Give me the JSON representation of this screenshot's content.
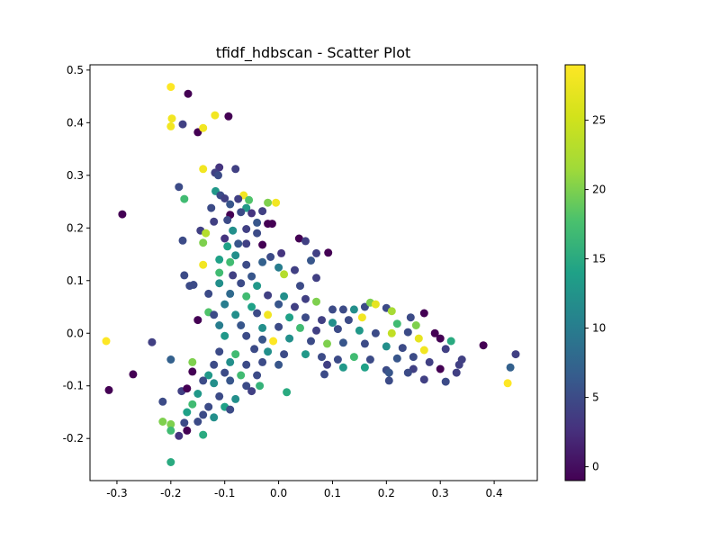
{
  "chart_data": {
    "type": "scatter",
    "title": "tfidf_hdbscan - Scatter Plot",
    "xlabel": "",
    "ylabel": "",
    "xlim": [
      -0.35,
      0.48
    ],
    "ylim": [
      -0.28,
      0.51
    ],
    "x_ticks": [
      "-0.3",
      "-0.2",
      "-0.1",
      "0.0",
      "0.1",
      "0.2",
      "0.3",
      "0.4"
    ],
    "x_tick_values": [
      -0.3,
      -0.2,
      -0.1,
      0.0,
      0.1,
      0.2,
      0.3,
      0.4
    ],
    "y_ticks": [
      "-0.2",
      "-0.1",
      "0.0",
      "0.1",
      "0.2",
      "0.3",
      "0.4",
      "0.5"
    ],
    "y_tick_values": [
      -0.2,
      -0.1,
      0.0,
      0.1,
      0.2,
      0.3,
      0.4,
      0.5
    ],
    "grid": false,
    "colormap": "viridis",
    "colorbar": {
      "range": [
        -1,
        29
      ],
      "ticks": [
        "0",
        "5",
        "10",
        "15",
        "20",
        "25"
      ],
      "tick_values": [
        0,
        5,
        10,
        15,
        20,
        25
      ]
    },
    "points": [
      {
        "x": -0.2,
        "y": 0.468,
        "c": 29
      },
      {
        "x": -0.168,
        "y": 0.455,
        "c": -1
      },
      {
        "x": -0.198,
        "y": 0.408,
        "c": 28
      },
      {
        "x": -0.2,
        "y": 0.393,
        "c": 28
      },
      {
        "x": -0.178,
        "y": 0.397,
        "c": 4
      },
      {
        "x": -0.15,
        "y": 0.382,
        "c": -1
      },
      {
        "x": -0.14,
        "y": 0.39,
        "c": 28
      },
      {
        "x": -0.118,
        "y": 0.414,
        "c": 28
      },
      {
        "x": -0.093,
        "y": 0.412,
        "c": -1
      },
      {
        "x": -0.14,
        "y": 0.312,
        "c": 28
      },
      {
        "x": -0.11,
        "y": 0.315,
        "c": 3
      },
      {
        "x": -0.08,
        "y": 0.312,
        "c": 4
      },
      {
        "x": -0.118,
        "y": 0.305,
        "c": 4
      },
      {
        "x": -0.112,
        "y": 0.3,
        "c": 5
      },
      {
        "x": -0.185,
        "y": 0.278,
        "c": 5
      },
      {
        "x": -0.175,
        "y": 0.255,
        "c": 17
      },
      {
        "x": -0.117,
        "y": 0.27,
        "c": 13
      },
      {
        "x": -0.108,
        "y": 0.262,
        "c": 5
      },
      {
        "x": -0.1,
        "y": 0.256,
        "c": 4
      },
      {
        "x": -0.065,
        "y": 0.262,
        "c": 28
      },
      {
        "x": -0.075,
        "y": 0.255,
        "c": 4
      },
      {
        "x": -0.09,
        "y": 0.245,
        "c": 6
      },
      {
        "x": -0.055,
        "y": 0.253,
        "c": 18
      },
      {
        "x": -0.02,
        "y": 0.248,
        "c": 20
      },
      {
        "x": -0.005,
        "y": 0.248,
        "c": 28
      },
      {
        "x": -0.125,
        "y": 0.238,
        "c": 5
      },
      {
        "x": -0.06,
        "y": 0.238,
        "c": 13
      },
      {
        "x": -0.09,
        "y": 0.225,
        "c": -1
      },
      {
        "x": -0.07,
        "y": 0.23,
        "c": 5
      },
      {
        "x": -0.05,
        "y": 0.228,
        "c": 3
      },
      {
        "x": -0.03,
        "y": 0.232,
        "c": 4
      },
      {
        "x": -0.12,
        "y": 0.212,
        "c": 4
      },
      {
        "x": -0.095,
        "y": 0.215,
        "c": 5
      },
      {
        "x": -0.04,
        "y": 0.21,
        "c": 6
      },
      {
        "x": -0.02,
        "y": 0.208,
        "c": -1
      },
      {
        "x": -0.012,
        "y": 0.208,
        "c": -1
      },
      {
        "x": -0.29,
        "y": 0.226,
        "c": -1
      },
      {
        "x": -0.145,
        "y": 0.195,
        "c": 4
      },
      {
        "x": -0.135,
        "y": 0.19,
        "c": 23
      },
      {
        "x": -0.085,
        "y": 0.195,
        "c": 12
      },
      {
        "x": -0.06,
        "y": 0.198,
        "c": 4
      },
      {
        "x": -0.04,
        "y": 0.19,
        "c": 5
      },
      {
        "x": -0.178,
        "y": 0.176,
        "c": 5
      },
      {
        "x": -0.14,
        "y": 0.172,
        "c": 20
      },
      {
        "x": -0.1,
        "y": 0.18,
        "c": 3
      },
      {
        "x": -0.095,
        "y": 0.165,
        "c": 14
      },
      {
        "x": -0.075,
        "y": 0.17,
        "c": 6
      },
      {
        "x": -0.06,
        "y": 0.17,
        "c": 4
      },
      {
        "x": -0.03,
        "y": 0.168,
        "c": -1
      },
      {
        "x": 0.038,
        "y": 0.18,
        "c": -1
      },
      {
        "x": 0.05,
        "y": 0.175,
        "c": 4
      },
      {
        "x": 0.07,
        "y": 0.152,
        "c": 4
      },
      {
        "x": 0.092,
        "y": 0.153,
        "c": -1
      },
      {
        "x": 0.005,
        "y": 0.152,
        "c": 3
      },
      {
        "x": -0.015,
        "y": 0.145,
        "c": 5
      },
      {
        "x": -0.08,
        "y": 0.148,
        "c": 12
      },
      {
        "x": -0.11,
        "y": 0.14,
        "c": 14
      },
      {
        "x": -0.14,
        "y": 0.13,
        "c": 28
      },
      {
        "x": -0.09,
        "y": 0.135,
        "c": 17
      },
      {
        "x": -0.06,
        "y": 0.13,
        "c": 5
      },
      {
        "x": -0.03,
        "y": 0.135,
        "c": 7
      },
      {
        "x": 0.06,
        "y": 0.138,
        "c": 6
      },
      {
        "x": 0.0,
        "y": 0.125,
        "c": 10
      },
      {
        "x": 0.03,
        "y": 0.12,
        "c": 4
      },
      {
        "x": 0.01,
        "y": 0.112,
        "c": 23
      },
      {
        "x": -0.175,
        "y": 0.11,
        "c": 5
      },
      {
        "x": -0.11,
        "y": 0.115,
        "c": 17
      },
      {
        "x": -0.085,
        "y": 0.11,
        "c": 4
      },
      {
        "x": -0.05,
        "y": 0.108,
        "c": 6
      },
      {
        "x": 0.07,
        "y": 0.105,
        "c": 4
      },
      {
        "x": -0.165,
        "y": 0.09,
        "c": 5
      },
      {
        "x": -0.158,
        "y": 0.092,
        "c": 5
      },
      {
        "x": -0.11,
        "y": 0.095,
        "c": 12
      },
      {
        "x": -0.07,
        "y": 0.095,
        "c": 5
      },
      {
        "x": -0.04,
        "y": 0.09,
        "c": 13
      },
      {
        "x": 0.04,
        "y": 0.09,
        "c": 5
      },
      {
        "x": -0.13,
        "y": 0.075,
        "c": 5
      },
      {
        "x": -0.09,
        "y": 0.075,
        "c": 8
      },
      {
        "x": -0.06,
        "y": 0.07,
        "c": 17
      },
      {
        "x": -0.02,
        "y": 0.072,
        "c": 4
      },
      {
        "x": 0.01,
        "y": 0.07,
        "c": 12
      },
      {
        "x": 0.05,
        "y": 0.065,
        "c": 4
      },
      {
        "x": -0.1,
        "y": 0.055,
        "c": 10
      },
      {
        "x": -0.05,
        "y": 0.05,
        "c": 14
      },
      {
        "x": 0.0,
        "y": 0.055,
        "c": 6
      },
      {
        "x": 0.03,
        "y": 0.05,
        "c": 4
      },
      {
        "x": 0.07,
        "y": 0.06,
        "c": 20
      },
      {
        "x": 0.1,
        "y": 0.045,
        "c": 5
      },
      {
        "x": 0.12,
        "y": 0.045,
        "c": 5
      },
      {
        "x": 0.14,
        "y": 0.045,
        "c": 12
      },
      {
        "x": 0.16,
        "y": 0.05,
        "c": 5
      },
      {
        "x": 0.17,
        "y": 0.058,
        "c": 20
      },
      {
        "x": 0.18,
        "y": 0.055,
        "c": 27
      },
      {
        "x": 0.2,
        "y": 0.048,
        "c": 5
      },
      {
        "x": 0.21,
        "y": 0.042,
        "c": 22
      },
      {
        "x": 0.245,
        "y": 0.03,
        "c": 5
      },
      {
        "x": 0.27,
        "y": 0.038,
        "c": -1
      },
      {
        "x": -0.13,
        "y": 0.04,
        "c": 18
      },
      {
        "x": -0.15,
        "y": 0.025,
        "c": -1
      },
      {
        "x": -0.12,
        "y": 0.035,
        "c": 5
      },
      {
        "x": -0.08,
        "y": 0.035,
        "c": 12
      },
      {
        "x": -0.04,
        "y": 0.038,
        "c": 5
      },
      {
        "x": -0.02,
        "y": 0.035,
        "c": 28
      },
      {
        "x": 0.02,
        "y": 0.03,
        "c": 14
      },
      {
        "x": 0.05,
        "y": 0.03,
        "c": 5
      },
      {
        "x": 0.08,
        "y": 0.025,
        "c": 4
      },
      {
        "x": 0.1,
        "y": 0.02,
        "c": 12
      },
      {
        "x": 0.13,
        "y": 0.025,
        "c": 5
      },
      {
        "x": 0.155,
        "y": 0.03,
        "c": 28
      },
      {
        "x": 0.22,
        "y": 0.018,
        "c": 17
      },
      {
        "x": 0.255,
        "y": 0.015,
        "c": 20
      },
      {
        "x": -0.11,
        "y": 0.015,
        "c": 10
      },
      {
        "x": -0.07,
        "y": 0.015,
        "c": 6
      },
      {
        "x": -0.03,
        "y": 0.01,
        "c": 12
      },
      {
        "x": 0.0,
        "y": 0.012,
        "c": 5
      },
      {
        "x": 0.04,
        "y": 0.01,
        "c": 17
      },
      {
        "x": 0.07,
        "y": 0.005,
        "c": 4
      },
      {
        "x": 0.11,
        "y": 0.008,
        "c": 5
      },
      {
        "x": 0.15,
        "y": 0.005,
        "c": 13
      },
      {
        "x": 0.18,
        "y": 0.0,
        "c": 5
      },
      {
        "x": 0.21,
        "y": 0.0,
        "c": 24
      },
      {
        "x": 0.24,
        "y": 0.002,
        "c": 5
      },
      {
        "x": 0.26,
        "y": -0.01,
        "c": 27
      },
      {
        "x": 0.29,
        "y": 0.0,
        "c": -1
      },
      {
        "x": 0.3,
        "y": -0.01,
        "c": -1
      },
      {
        "x": 0.32,
        "y": -0.015,
        "c": 15
      },
      {
        "x": -0.32,
        "y": -0.015,
        "c": 29
      },
      {
        "x": -0.235,
        "y": -0.017,
        "c": 4
      },
      {
        "x": -0.1,
        "y": -0.005,
        "c": 13
      },
      {
        "x": -0.06,
        "y": -0.005,
        "c": 5
      },
      {
        "x": -0.03,
        "y": -0.012,
        "c": 6
      },
      {
        "x": -0.01,
        "y": -0.015,
        "c": 29
      },
      {
        "x": 0.02,
        "y": -0.01,
        "c": 12
      },
      {
        "x": 0.06,
        "y": -0.015,
        "c": 5
      },
      {
        "x": 0.09,
        "y": -0.02,
        "c": 20
      },
      {
        "x": 0.12,
        "y": -0.018,
        "c": 6
      },
      {
        "x": 0.16,
        "y": -0.02,
        "c": 5
      },
      {
        "x": 0.2,
        "y": -0.025,
        "c": 12
      },
      {
        "x": 0.23,
        "y": -0.028,
        "c": 5
      },
      {
        "x": 0.27,
        "y": -0.032,
        "c": 28
      },
      {
        "x": 0.31,
        "y": -0.03,
        "c": 4
      },
      {
        "x": 0.38,
        "y": -0.023,
        "c": -1
      },
      {
        "x": 0.44,
        "y": -0.04,
        "c": 4
      },
      {
        "x": -0.11,
        "y": -0.035,
        "c": 5
      },
      {
        "x": -0.08,
        "y": -0.04,
        "c": 17
      },
      {
        "x": -0.045,
        "y": -0.03,
        "c": 5
      },
      {
        "x": -0.02,
        "y": -0.035,
        "c": 12
      },
      {
        "x": 0.01,
        "y": -0.04,
        "c": 5
      },
      {
        "x": 0.05,
        "y": -0.04,
        "c": 13
      },
      {
        "x": 0.08,
        "y": -0.045,
        "c": 5
      },
      {
        "x": 0.11,
        "y": -0.05,
        "c": 5
      },
      {
        "x": 0.14,
        "y": -0.045,
        "c": 17
      },
      {
        "x": 0.17,
        "y": -0.05,
        "c": 5
      },
      {
        "x": 0.22,
        "y": -0.048,
        "c": 6
      },
      {
        "x": 0.25,
        "y": -0.045,
        "c": 5
      },
      {
        "x": 0.28,
        "y": -0.055,
        "c": 4
      },
      {
        "x": 0.34,
        "y": -0.05,
        "c": 4
      },
      {
        "x": -0.16,
        "y": -0.055,
        "c": 20
      },
      {
        "x": -0.12,
        "y": -0.06,
        "c": 5
      },
      {
        "x": -0.09,
        "y": -0.055,
        "c": 12
      },
      {
        "x": -0.06,
        "y": -0.06,
        "c": 5
      },
      {
        "x": -0.03,
        "y": -0.055,
        "c": 5
      },
      {
        "x": 0.0,
        "y": -0.06,
        "c": 6
      },
      {
        "x": 0.09,
        "y": -0.06,
        "c": 4
      },
      {
        "x": 0.12,
        "y": -0.065,
        "c": 13
      },
      {
        "x": 0.16,
        "y": -0.065,
        "c": 14
      },
      {
        "x": 0.2,
        "y": -0.07,
        "c": 5
      },
      {
        "x": 0.25,
        "y": -0.068,
        "c": 4
      },
      {
        "x": 0.3,
        "y": -0.068,
        "c": -1
      },
      {
        "x": 0.335,
        "y": -0.06,
        "c": 4
      },
      {
        "x": 0.43,
        "y": -0.065,
        "c": 7
      },
      {
        "x": -0.27,
        "y": -0.078,
        "c": -1
      },
      {
        "x": -0.16,
        "y": -0.073,
        "c": -1
      },
      {
        "x": -0.13,
        "y": -0.08,
        "c": 13
      },
      {
        "x": -0.1,
        "y": -0.075,
        "c": 5
      },
      {
        "x": -0.07,
        "y": -0.08,
        "c": 17
      },
      {
        "x": -0.04,
        "y": -0.08,
        "c": 5
      },
      {
        "x": 0.085,
        "y": -0.078,
        "c": 5
      },
      {
        "x": 0.205,
        "y": -0.075,
        "c": 6
      },
      {
        "x": 0.24,
        "y": -0.075,
        "c": 5
      },
      {
        "x": 0.33,
        "y": -0.075,
        "c": 4
      },
      {
        "x": -0.14,
        "y": -0.09,
        "c": 5
      },
      {
        "x": -0.12,
        "y": -0.095,
        "c": 12
      },
      {
        "x": -0.09,
        "y": -0.09,
        "c": 6
      },
      {
        "x": -0.06,
        "y": -0.1,
        "c": 5
      },
      {
        "x": -0.035,
        "y": -0.1,
        "c": 16
      },
      {
        "x": 0.205,
        "y": -0.09,
        "c": 5
      },
      {
        "x": 0.27,
        "y": -0.088,
        "c": 4
      },
      {
        "x": 0.31,
        "y": -0.092,
        "c": 5
      },
      {
        "x": 0.425,
        "y": -0.095,
        "c": 29
      },
      {
        "x": -0.315,
        "y": -0.108,
        "c": -1
      },
      {
        "x": -0.2,
        "y": -0.05,
        "c": 7
      },
      {
        "x": -0.18,
        "y": -0.11,
        "c": 4
      },
      {
        "x": -0.17,
        "y": -0.105,
        "c": -1
      },
      {
        "x": -0.15,
        "y": -0.115,
        "c": 13
      },
      {
        "x": -0.11,
        "y": -0.12,
        "c": 5
      },
      {
        "x": -0.08,
        "y": -0.125,
        "c": 12
      },
      {
        "x": -0.05,
        "y": -0.11,
        "c": 4
      },
      {
        "x": 0.015,
        "y": -0.112,
        "c": 15
      },
      {
        "x": -0.215,
        "y": -0.13,
        "c": 5
      },
      {
        "x": -0.16,
        "y": -0.135,
        "c": 17
      },
      {
        "x": -0.13,
        "y": -0.14,
        "c": 5
      },
      {
        "x": -0.1,
        "y": -0.14,
        "c": 14
      },
      {
        "x": -0.09,
        "y": -0.145,
        "c": 5
      },
      {
        "x": -0.17,
        "y": -0.15,
        "c": 14
      },
      {
        "x": -0.14,
        "y": -0.155,
        "c": 5
      },
      {
        "x": -0.12,
        "y": -0.16,
        "c": 12
      },
      {
        "x": -0.215,
        "y": -0.168,
        "c": 20
      },
      {
        "x": -0.2,
        "y": -0.173,
        "c": 20
      },
      {
        "x": -0.175,
        "y": -0.17,
        "c": 5
      },
      {
        "x": -0.15,
        "y": -0.168,
        "c": 5
      },
      {
        "x": -0.2,
        "y": -0.185,
        "c": 17
      },
      {
        "x": -0.17,
        "y": -0.185,
        "c": -1
      },
      {
        "x": -0.14,
        "y": -0.193,
        "c": 15
      },
      {
        "x": -0.185,
        "y": -0.195,
        "c": 3
      },
      {
        "x": -0.2,
        "y": -0.245,
        "c": 15
      }
    ]
  }
}
